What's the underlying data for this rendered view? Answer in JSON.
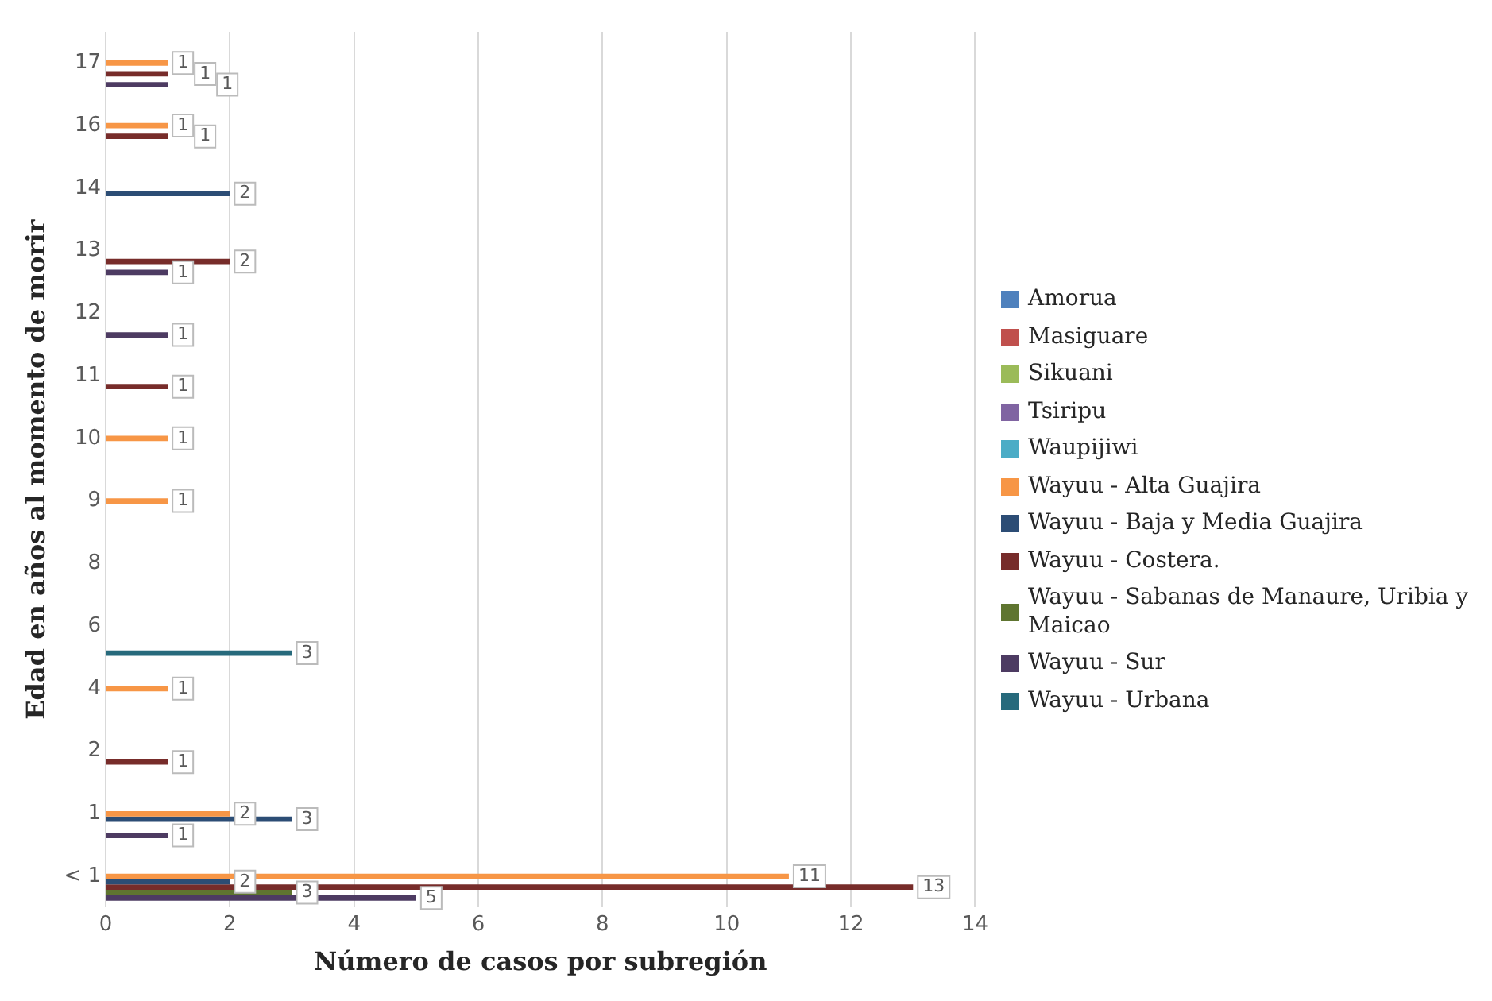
{
  "chart_data": {
    "type": "bar",
    "orientation": "horizontal",
    "xlabel": "Número de casos por subregión",
    "ylabel": "Edad en años al momento de morir",
    "categories": [
      "17",
      "16",
      "14",
      "13",
      "12",
      "11",
      "10",
      "9",
      "8",
      "6",
      "4",
      "2",
      "1",
      "< 1"
    ],
    "xlim": [
      0,
      14
    ],
    "xticks": [
      0,
      2,
      4,
      6,
      8,
      10,
      12,
      14
    ],
    "grid": "x",
    "legend": "right",
    "data_labels": true,
    "series": [
      {
        "name": "Amorua",
        "color": "#4f81bd",
        "values": [
          null,
          null,
          null,
          null,
          null,
          null,
          null,
          null,
          null,
          null,
          null,
          null,
          null,
          null
        ]
      },
      {
        "name": "Masiguare",
        "color": "#c0504d",
        "values": [
          null,
          null,
          null,
          null,
          null,
          null,
          null,
          null,
          null,
          null,
          null,
          null,
          null,
          null
        ]
      },
      {
        "name": "Sikuani",
        "color": "#9bbb59",
        "values": [
          null,
          null,
          null,
          null,
          null,
          null,
          null,
          null,
          null,
          null,
          null,
          null,
          null,
          null
        ]
      },
      {
        "name": "Tsiripu",
        "color": "#8064a2",
        "values": [
          null,
          null,
          null,
          null,
          null,
          null,
          null,
          null,
          null,
          null,
          null,
          null,
          null,
          null
        ]
      },
      {
        "name": "Waupijiwi",
        "color": "#4bacc6",
        "values": [
          null,
          null,
          null,
          null,
          null,
          null,
          null,
          null,
          null,
          null,
          null,
          null,
          null,
          null
        ]
      },
      {
        "name": "Wayuu - Alta Guajira",
        "color": "#f79646",
        "values": [
          1,
          1,
          null,
          null,
          null,
          null,
          1,
          1,
          null,
          null,
          1,
          null,
          2,
          11
        ]
      },
      {
        "name": "Wayuu - Baja y Media Guajira",
        "color": "#2c4d75",
        "values": [
          null,
          null,
          2,
          null,
          null,
          null,
          null,
          null,
          null,
          null,
          null,
          null,
          3,
          2
        ]
      },
      {
        "name": "Wayuu - Costera.",
        "color": "#772c2a",
        "values": [
          1,
          1,
          null,
          2,
          null,
          1,
          null,
          null,
          null,
          null,
          null,
          1,
          null,
          13
        ]
      },
      {
        "name": "Wayuu - Sabanas de Manaure, Uribia y Maicao",
        "color": "#5f7530",
        "values": [
          null,
          null,
          null,
          null,
          null,
          null,
          null,
          null,
          null,
          null,
          null,
          null,
          null,
          3
        ]
      },
      {
        "name": "Wayuu - Sur",
        "color": "#4d3b62",
        "values": [
          1,
          null,
          null,
          1,
          1,
          null,
          null,
          null,
          null,
          null,
          null,
          null,
          1,
          5
        ]
      },
      {
        "name": "Wayuu - Urbana",
        "color": "#276a7c",
        "values": [
          null,
          null,
          null,
          null,
          null,
          null,
          null,
          null,
          null,
          3,
          null,
          null,
          null,
          null
        ]
      }
    ]
  }
}
